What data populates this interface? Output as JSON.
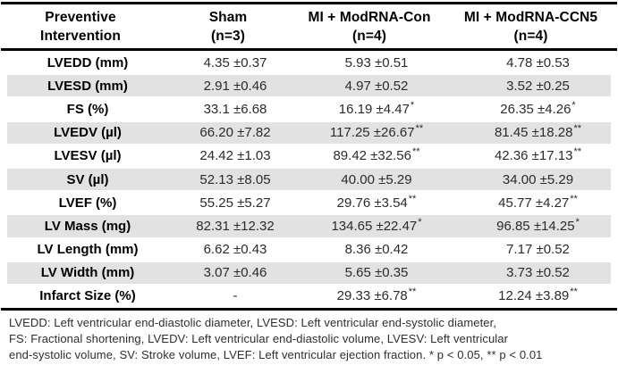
{
  "table": {
    "headers": [
      {
        "line1": "Preventive",
        "line2": "Intervention"
      },
      {
        "line1": "Sham",
        "line2": "(n=3)"
      },
      {
        "line1": "MI + ModRNA-Con",
        "line2": "(n=4)"
      },
      {
        "line1": "MI + ModRNA-CCN5",
        "line2": "(n=4)"
      }
    ],
    "rows": [
      {
        "label": "LVEDD (mm)",
        "cells": [
          {
            "v": "4.35 ±0.37",
            "sup": ""
          },
          {
            "v": "5.93 ±0.51",
            "sup": ""
          },
          {
            "v": "4.78 ±0.53",
            "sup": ""
          }
        ]
      },
      {
        "label": "LVESD (mm)",
        "cells": [
          {
            "v": "2.91 ±0.46",
            "sup": ""
          },
          {
            "v": "4.97 ±0.52",
            "sup": ""
          },
          {
            "v": "3.52 ±0.25",
            "sup": ""
          }
        ]
      },
      {
        "label": "FS (%)",
        "cells": [
          {
            "v": "33.1 ±6.68",
            "sup": ""
          },
          {
            "v": "16.19 ±4.47",
            "sup": "*"
          },
          {
            "v": "26.35 ±4.26",
            "sup": "*"
          }
        ]
      },
      {
        "label": "LVEDV (µl)",
        "cells": [
          {
            "v": "66.20 ±7.82",
            "sup": ""
          },
          {
            "v": "117.25 ±26.67",
            "sup": "**"
          },
          {
            "v": "81.45 ±18.28",
            "sup": "**"
          }
        ]
      },
      {
        "label": "LVESV (µl)",
        "cells": [
          {
            "v": "24.42 ±1.03",
            "sup": ""
          },
          {
            "v": "89.42 ±32.56",
            "sup": "**"
          },
          {
            "v": "42.36 ±17.13",
            "sup": "**"
          }
        ]
      },
      {
        "label": "SV (µl)",
        "cells": [
          {
            "v": "52.13 ±8.05",
            "sup": ""
          },
          {
            "v": "40.00 ±5.29",
            "sup": ""
          },
          {
            "v": "34.00 ±5.29",
            "sup": ""
          }
        ]
      },
      {
        "label": "LVEF (%)",
        "cells": [
          {
            "v": "55.25 ±5.27",
            "sup": ""
          },
          {
            "v": "29.76 ±3.54",
            "sup": "**"
          },
          {
            "v": "45.77 ±4.27",
            "sup": "**"
          }
        ]
      },
      {
        "label": "LV Mass (mg)",
        "cells": [
          {
            "v": "82.31 ±12.32",
            "sup": ""
          },
          {
            "v": "134.65 ±22.47",
            "sup": "*"
          },
          {
            "v": "96.85 ±14.25",
            "sup": "*"
          }
        ]
      },
      {
        "label": "LV Length (mm)",
        "cells": [
          {
            "v": "6.62 ±0.43",
            "sup": ""
          },
          {
            "v": "8.36 ±0.42",
            "sup": ""
          },
          {
            "v": "7.17 ±0.52",
            "sup": ""
          }
        ]
      },
      {
        "label": "LV Width (mm)",
        "cells": [
          {
            "v": "3.07 ±0.46",
            "sup": ""
          },
          {
            "v": "5.65 ±0.35",
            "sup": ""
          },
          {
            "v": "3.73 ±0.52",
            "sup": ""
          }
        ]
      },
      {
        "label": "Infarct Size (%)",
        "cells": [
          {
            "v": "-",
            "sup": ""
          },
          {
            "v": "29.33 ±6.78",
            "sup": "**"
          },
          {
            "v": "12.24 ±3.89",
            "sup": "**"
          }
        ]
      }
    ],
    "striped_row_indices": [
      1,
      3,
      5,
      7,
      9
    ],
    "stripe_color": "#e2e2e2",
    "footnote_lines": [
      "LVEDD:  Left ventricular end-diastolic diameter, LVESD: Left ventricular end-systolic diameter,",
      "FS: Fractional shortening, LVEDV: Left ventricular end-diastolic volume, LVESV: Left ventricular",
      "end-systolic volume, SV: Stroke volume, LVEF: Left ventricular ejection fraction. * p < 0.05, ** p < 0.01"
    ]
  }
}
